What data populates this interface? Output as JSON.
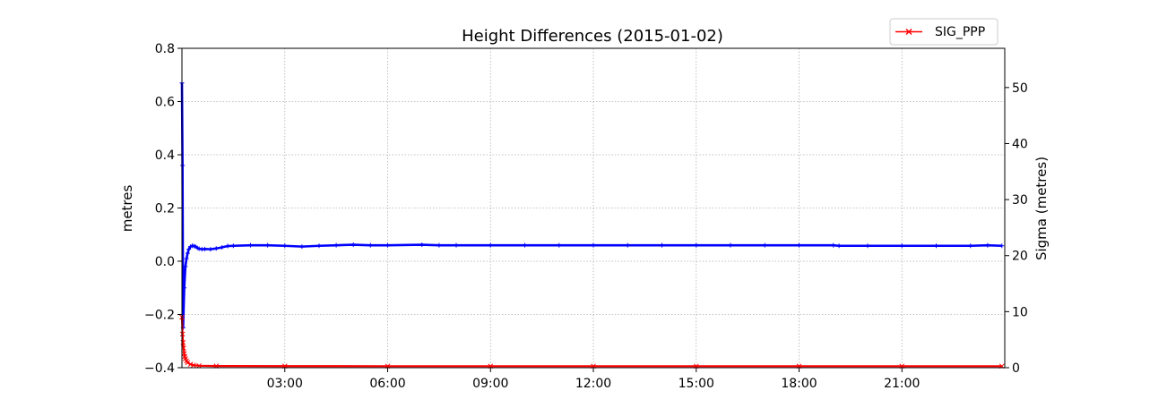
{
  "chart_data": {
    "type": "line",
    "title": "Height Differences (2015-01-02)",
    "xlabel": "",
    "ylabel": "metres",
    "y2label": "Sigma (metres)",
    "xlim": [
      "00:00",
      "24:00"
    ],
    "ylim": [
      -0.4,
      0.8
    ],
    "y2lim": [
      0,
      57
    ],
    "grid": true,
    "legend_position": "top-right",
    "x_ticks": [
      "03:00",
      "06:00",
      "09:00",
      "12:00",
      "15:00",
      "18:00",
      "21:00"
    ],
    "y_ticks": [
      "−0.4",
      "−0.2",
      "0.0",
      "0.2",
      "0.4",
      "0.6",
      "0.8"
    ],
    "y2_ticks": [
      "0",
      "10",
      "20",
      "30",
      "40",
      "50"
    ],
    "series": [
      {
        "name": "",
        "axis": "left",
        "color": "#0000ff",
        "marker": "+",
        "x": [
          "00:00",
          "00:01",
          "00:02",
          "00:04",
          "00:06",
          "00:08",
          "00:10",
          "00:12",
          "00:15",
          "00:18",
          "00:21",
          "00:24",
          "00:27",
          "00:30",
          "00:35",
          "00:40",
          "00:50",
          "01:00",
          "01:10",
          "01:20",
          "01:30",
          "02:00",
          "02:30",
          "03:00",
          "03:30",
          "04:00",
          "04:30",
          "05:00",
          "05:30",
          "06:00",
          "07:00",
          "07:30",
          "08:00",
          "09:00",
          "10:00",
          "11:00",
          "12:00",
          "13:00",
          "14:00",
          "15:00",
          "16:00",
          "17:00",
          "18:00",
          "19:00",
          "19:10",
          "20:00",
          "21:00",
          "22:00",
          "23:00",
          "23:30",
          "23:55"
        ],
        "values": [
          0.67,
          0.36,
          -0.25,
          -0.1,
          -0.02,
          0.01,
          0.03,
          0.045,
          0.055,
          0.058,
          0.057,
          0.055,
          0.05,
          0.047,
          0.045,
          0.046,
          0.045,
          0.048,
          0.052,
          0.057,
          0.058,
          0.06,
          0.06,
          0.058,
          0.055,
          0.058,
          0.06,
          0.062,
          0.06,
          0.06,
          0.062,
          0.06,
          0.06,
          0.06,
          0.06,
          0.06,
          0.06,
          0.06,
          0.06,
          0.06,
          0.06,
          0.06,
          0.06,
          0.06,
          0.058,
          0.058,
          0.058,
          0.058,
          0.058,
          0.06,
          0.058
        ]
      },
      {
        "name": "SIG_PPP",
        "axis": "right",
        "color": "#ff0000",
        "marker": "x",
        "x": [
          "00:00",
          "00:01",
          "00:02",
          "00:03",
          "00:04",
          "00:05",
          "00:06",
          "00:08",
          "00:10",
          "00:15",
          "00:20",
          "00:30",
          "01:00",
          "03:00",
          "06:00",
          "09:00",
          "12:00",
          "15:00",
          "18:00",
          "21:00",
          "23:55"
        ],
        "values": [
          9,
          6,
          4.5,
          3.5,
          2.5,
          2,
          1.6,
          1.2,
          0.9,
          0.6,
          0.45,
          0.35,
          0.3,
          0.28,
          0.27,
          0.27,
          0.27,
          0.27,
          0.27,
          0.27,
          0.27
        ]
      }
    ]
  }
}
